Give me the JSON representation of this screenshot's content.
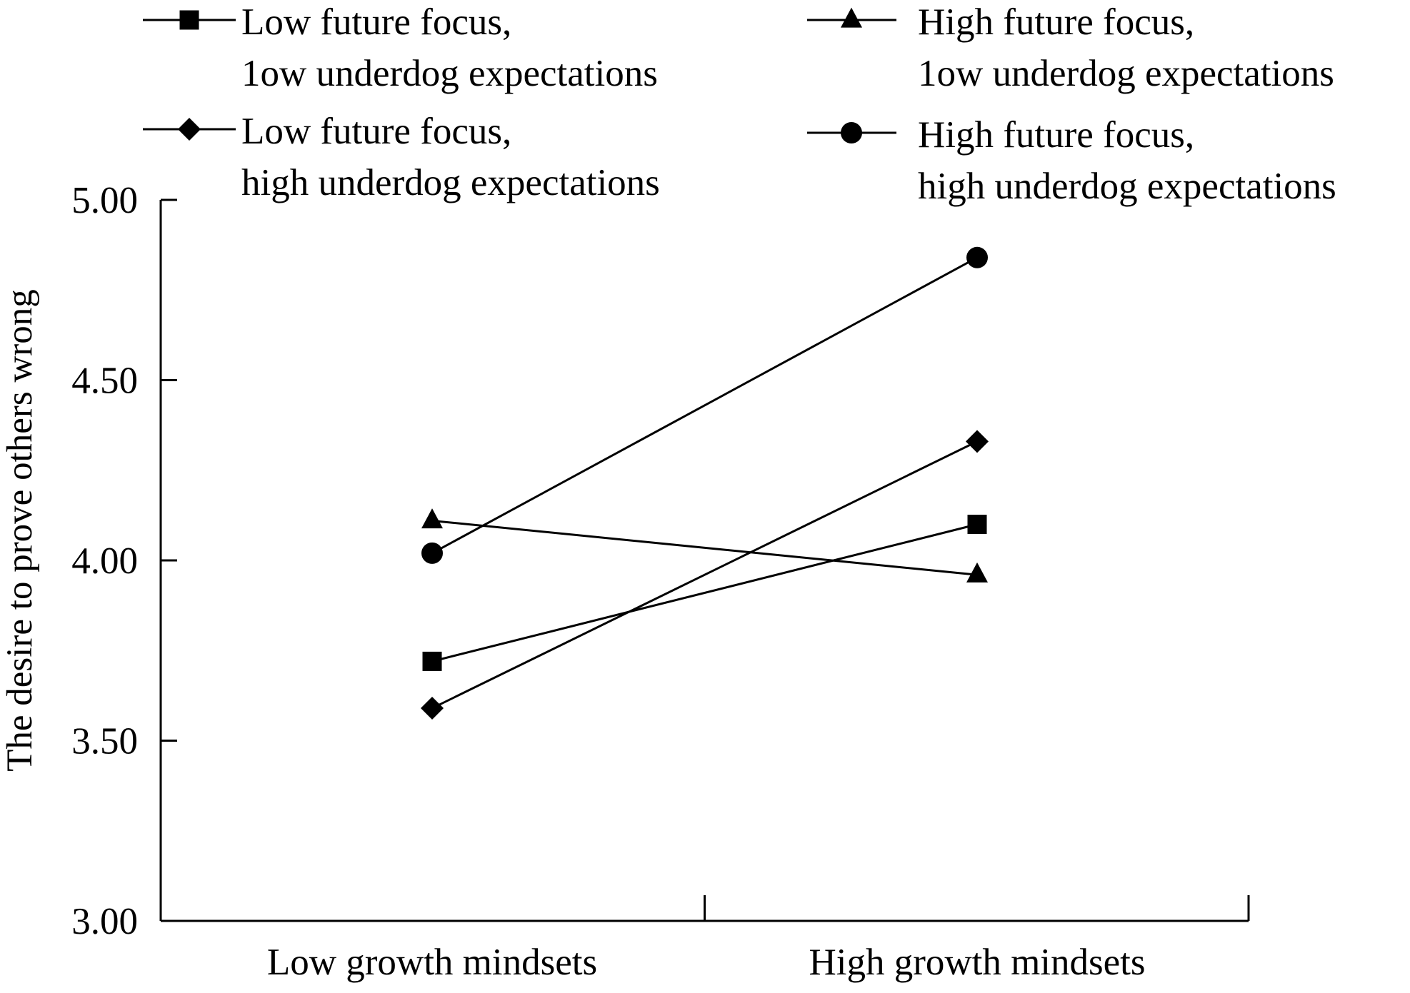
{
  "chart_data": {
    "type": "line",
    "categories": [
      "Low growth mindsets",
      "High growth mindsets"
    ],
    "ylabel": "The desire to prove others wrong",
    "xlabel": "",
    "ylim": [
      3.0,
      5.0
    ],
    "yticks": [
      "3.00",
      "3.50",
      "4.00",
      "4.50",
      "5.00"
    ],
    "grid": false,
    "legend_position": "top",
    "series": [
      {
        "name_lines": [
          "Low future focus,",
          "1ow underdog expectations"
        ],
        "marker": "square",
        "values": [
          3.72,
          4.1
        ]
      },
      {
        "name_lines": [
          "High future focus,",
          "1ow underdog expectations"
        ],
        "marker": "triangle",
        "values": [
          4.11,
          3.96
        ]
      },
      {
        "name_lines": [
          "Low future focus,",
          "high underdog expectations"
        ],
        "marker": "diamond",
        "values": [
          3.59,
          4.33
        ]
      },
      {
        "name_lines": [
          "High future focus,",
          "high underdog expectations"
        ],
        "marker": "circle",
        "values": [
          4.02,
          4.84
        ]
      }
    ],
    "color": "#000000"
  }
}
